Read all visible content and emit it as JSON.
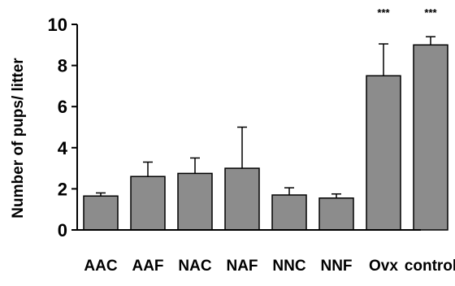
{
  "chart_data": {
    "type": "bar",
    "title": "",
    "xlabel": "",
    "ylabel": "Number of pups/ litter",
    "ylim": [
      0,
      10
    ],
    "yticks": [
      0,
      2,
      4,
      6,
      8,
      10
    ],
    "grid": false,
    "legend": "none",
    "categories": [
      "AAC",
      "AAF",
      "NAC",
      "NAF",
      "NNC",
      "NNF",
      "Ovx",
      "control"
    ],
    "values": [
      1.65,
      2.6,
      2.75,
      3.0,
      1.7,
      1.55,
      7.5,
      9.0
    ],
    "error_plus": [
      0.15,
      0.7,
      0.75,
      2.0,
      0.35,
      0.2,
      1.55,
      0.4
    ],
    "significance": [
      "",
      "",
      "",
      "",
      "",
      "",
      "***",
      "***"
    ],
    "colors": {
      "bar": "#8c8c8c",
      "bar_edge": "#000000",
      "axis": "#000000"
    }
  }
}
